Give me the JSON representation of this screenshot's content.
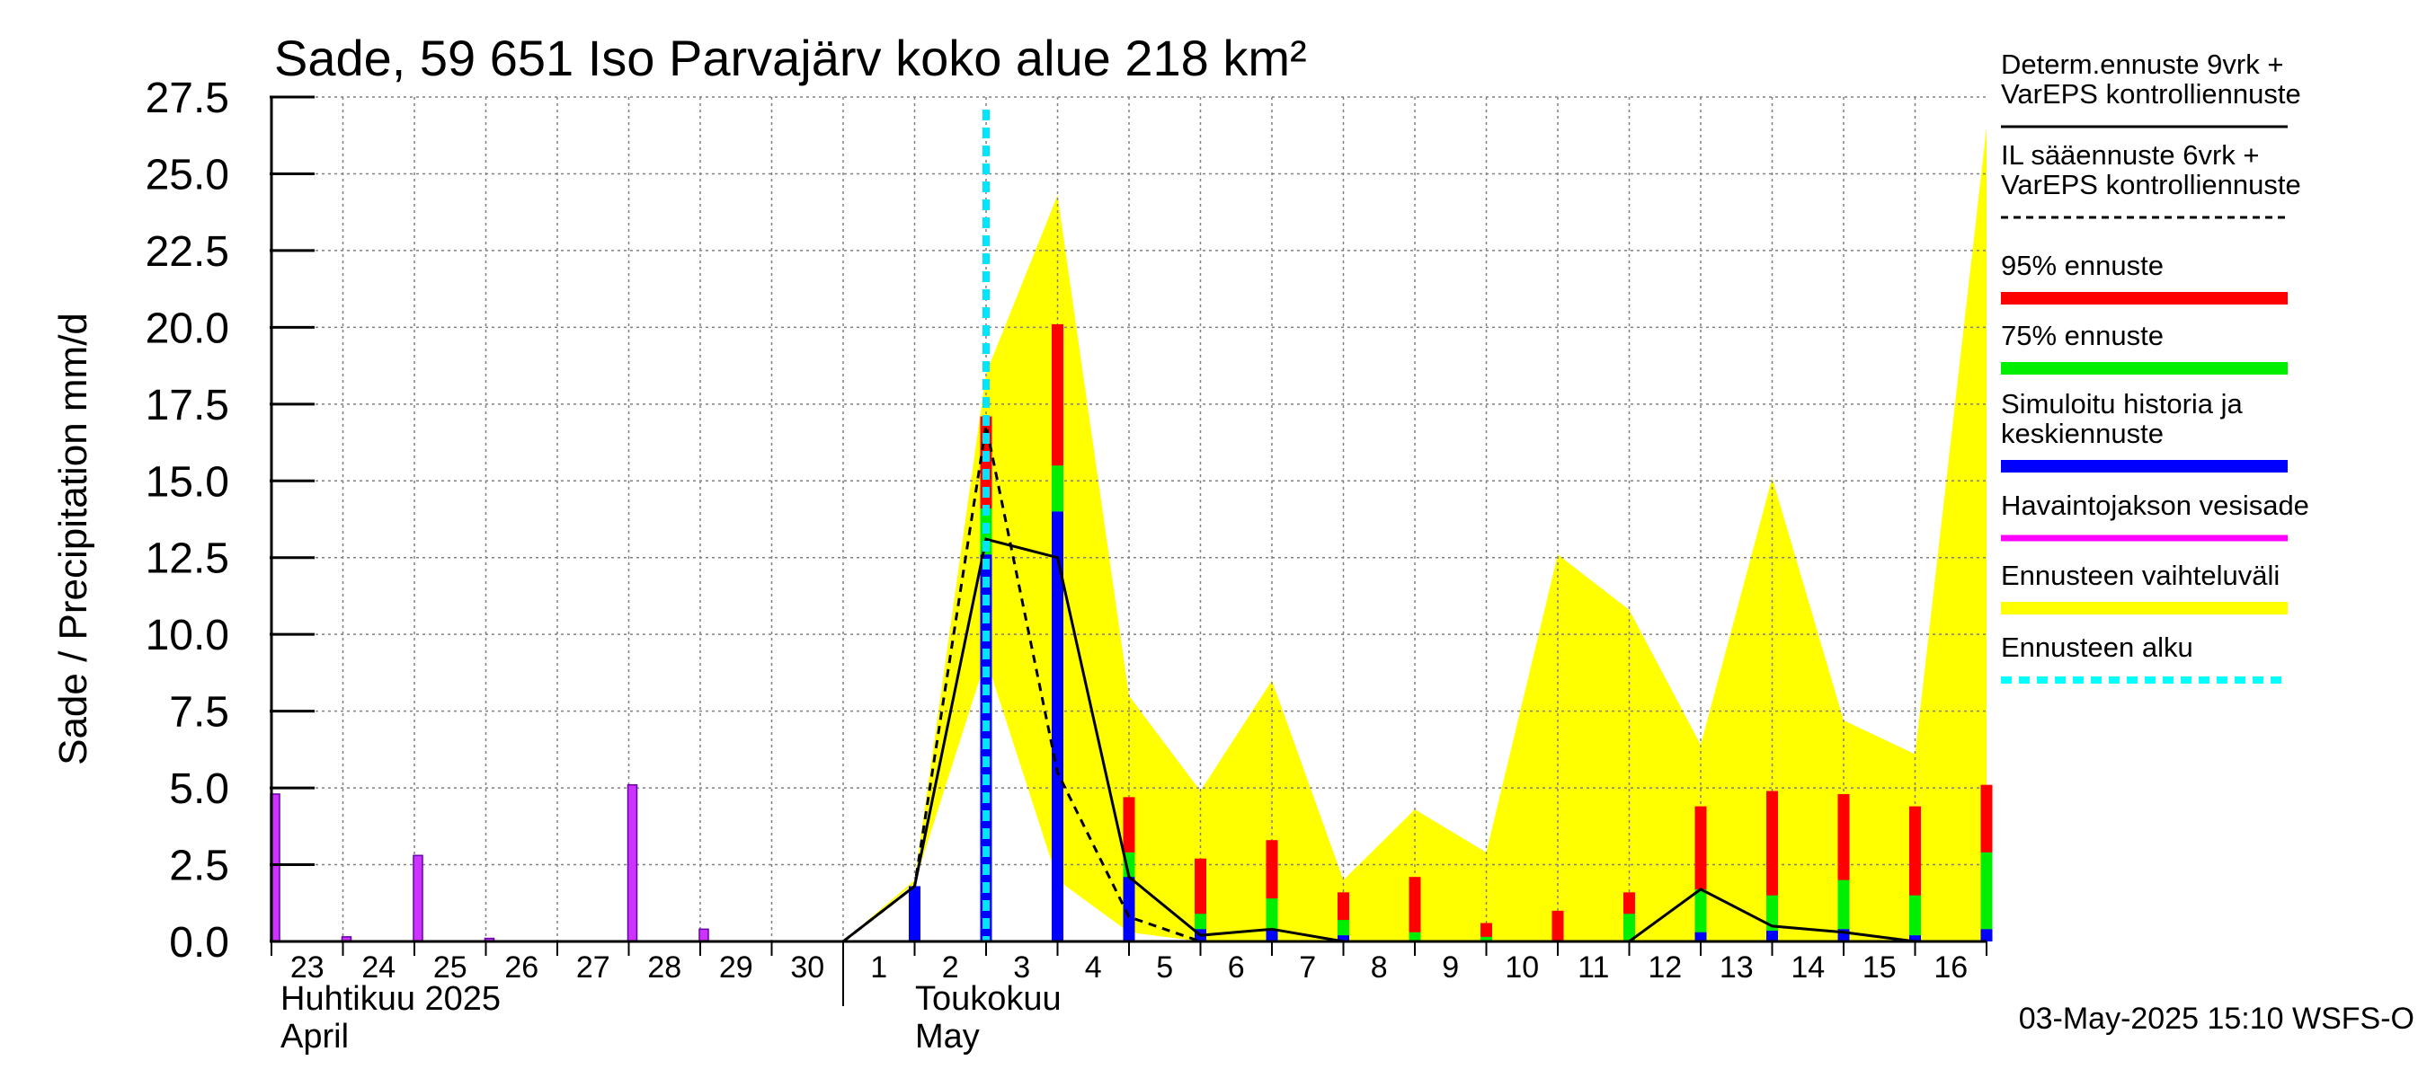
{
  "chart_data": {
    "type": "bar",
    "title": "Sade, 59 651 Iso Parvajärv koko alue 218 km²",
    "ylabel": "Sade / Precipitation   mm/d",
    "ylim": [
      0,
      27.5
    ],
    "yticks": [
      "0.0",
      "2.5",
      "5.0",
      "7.5",
      "10.0",
      "12.5",
      "15.0",
      "17.5",
      "20.0",
      "22.5",
      "25.0",
      "27.5"
    ],
    "x_days": [
      "23",
      "24",
      "25",
      "26",
      "27",
      "28",
      "29",
      "30",
      "1",
      "2",
      "3",
      "4",
      "5",
      "6",
      "7",
      "8",
      "9",
      "10",
      "11",
      "12",
      "13",
      "14",
      "15",
      "16"
    ],
    "month_labels": [
      {
        "fi": "Huhtikuu  2025",
        "en": "April"
      },
      {
        "fi": "Toukokuu",
        "en": "May"
      }
    ],
    "timestamp": "03-May-2025 15:10 WSFS-O",
    "forecast_start_day_index": 10,
    "observed_precip": [
      4.8,
      0.15,
      2.8,
      0.1,
      0.0,
      5.1,
      0.4,
      0.0
    ],
    "observed_precip_days": [
      0,
      1,
      2,
      3,
      4,
      5,
      6,
      7
    ],
    "simulated_bars": [
      {
        "day": 9,
        "blue": 1.8,
        "green": 1.8,
        "red": 1.8
      },
      {
        "day": 10,
        "blue": 12.6,
        "green": 14.1,
        "red": 17.1
      },
      {
        "day": 11,
        "blue": 14.0,
        "green": 15.5,
        "red": 20.1
      },
      {
        "day": 12,
        "blue": 2.1,
        "green": 2.9,
        "red": 4.7
      },
      {
        "day": 13,
        "blue": 0.4,
        "green": 0.9,
        "red": 2.7
      },
      {
        "day": 14,
        "blue": 0.4,
        "green": 1.4,
        "red": 3.3
      },
      {
        "day": 15,
        "blue": 0.2,
        "green": 0.7,
        "red": 1.6
      },
      {
        "day": 16,
        "blue": 0.0,
        "green": 0.3,
        "red": 2.1
      },
      {
        "day": 17,
        "blue": 0.0,
        "green": 0.15,
        "red": 0.6
      },
      {
        "day": 18,
        "blue": 0.0,
        "green": 0.0,
        "red": 1.0
      },
      {
        "day": 19,
        "blue": 0.0,
        "green": 0.9,
        "red": 1.6
      },
      {
        "day": 20,
        "blue": 0.3,
        "green": 1.7,
        "red": 4.4
      },
      {
        "day": 21,
        "blue": 0.35,
        "green": 1.5,
        "red": 4.9
      },
      {
        "day": 22,
        "blue": 0.4,
        "green": 2.0,
        "red": 4.8
      },
      {
        "day": 23,
        "blue": 0.2,
        "green": 1.5,
        "red": 4.4
      },
      {
        "day": 24,
        "blue": 0.4,
        "green": 2.9,
        "red": 5.1
      }
    ],
    "range_upper": [
      [
        8,
        0.0
      ],
      [
        9,
        2.0
      ],
      [
        10,
        18.5
      ],
      [
        11,
        24.3
      ],
      [
        12,
        8.0
      ],
      [
        13,
        4.9
      ],
      [
        14,
        8.5
      ],
      [
        15,
        2.0
      ],
      [
        16,
        4.3
      ],
      [
        17,
        2.9
      ],
      [
        18,
        12.6
      ],
      [
        19,
        10.8
      ],
      [
        20,
        6.4
      ],
      [
        21,
        15.1
      ],
      [
        22,
        7.2
      ],
      [
        23,
        6.1
      ],
      [
        24,
        26.5
      ]
    ],
    "range_lower": [
      [
        8,
        0.0
      ],
      [
        9,
        1.9
      ],
      [
        10,
        9.2
      ],
      [
        11,
        2.0
      ],
      [
        12,
        0.3
      ],
      [
        13,
        0.0
      ],
      [
        14,
        0.0
      ],
      [
        15,
        0.0
      ],
      [
        16,
        0.0
      ],
      [
        17,
        0.0
      ],
      [
        18,
        0.0
      ],
      [
        19,
        0.0
      ],
      [
        20,
        0.0
      ],
      [
        21,
        0.0
      ],
      [
        22,
        0.0
      ],
      [
        23,
        0.0
      ],
      [
        24,
        0.0
      ]
    ],
    "determ_line": [
      [
        8,
        0.0
      ],
      [
        9,
        1.8
      ],
      [
        10,
        13.1
      ],
      [
        11,
        12.5
      ],
      [
        12,
        2.1
      ],
      [
        13,
        0.2
      ],
      [
        14,
        0.4
      ],
      [
        15,
        0.0
      ],
      [
        16,
        0.0
      ],
      [
        17,
        0.0
      ],
      [
        18,
        0.0
      ],
      [
        19,
        0.0
      ],
      [
        20,
        1.7
      ],
      [
        21,
        0.5
      ],
      [
        22,
        0.3
      ],
      [
        23,
        0.0
      ]
    ],
    "il_line": [
      [
        8,
        0.0
      ],
      [
        9,
        1.8
      ],
      [
        10,
        16.8
      ],
      [
        11,
        5.5
      ],
      [
        12,
        0.8
      ],
      [
        13,
        0.0
      ],
      [
        14,
        0.0
      ],
      [
        15,
        0.0
      ],
      [
        16,
        0.0
      ]
    ],
    "legend": [
      {
        "label": "Determ.ennuste 9vrk +\nVarEPS kontrolliennuste",
        "style": "solid",
        "color": "#000000"
      },
      {
        "label": "IL sääennuste 6vrk  +\n  VarEPS kontrolliennuste",
        "style": "dashed",
        "color": "#000000"
      },
      {
        "label": "95% ennuste",
        "style": "thick",
        "color": "#ff0000"
      },
      {
        "label": "75% ennuste",
        "style": "thick",
        "color": "#00ee00"
      },
      {
        "label": "Simuloitu historia ja\nkeskiennuste",
        "style": "thick",
        "color": "#0000ff"
      },
      {
        "label": "Havaintojakson vesisade",
        "style": "medium",
        "color": "#ff00ff"
      },
      {
        "label": "Ennusteen vaihteluväli",
        "style": "thick",
        "color": "#ffff00"
      },
      {
        "label": "Ennusteen alku",
        "style": "dotted",
        "color": "#00ffff"
      }
    ],
    "colors": {
      "observed": "#cc33ff",
      "blue": "#0000ff",
      "green": "#00ee00",
      "red": "#ff0000",
      "range": "#ffff00",
      "forecast_start": "#00e5ff"
    }
  }
}
